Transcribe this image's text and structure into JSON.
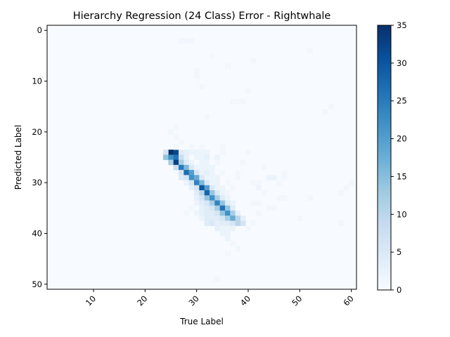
{
  "chart_data": {
    "type": "heatmap",
    "title": "Hierarchy Regression (24 Class) Error - Rightwhale",
    "xlabel": "True Label",
    "ylabel": "Predicted Label",
    "xlim": [
      1,
      61
    ],
    "ylim": [
      51,
      -1
    ],
    "xticks": [
      10,
      20,
      30,
      40,
      50,
      60
    ],
    "yticks": [
      0,
      10,
      20,
      30,
      40,
      50
    ],
    "colormap": "Blues",
    "colorbar": {
      "min": 0,
      "max": 35,
      "ticks": [
        0,
        5,
        10,
        15,
        20,
        25,
        30,
        35
      ]
    },
    "cells": [
      [
        25,
        24,
        35
      ],
      [
        26,
        24,
        32
      ],
      [
        24,
        24,
        6
      ],
      [
        27,
        24,
        4
      ],
      [
        28,
        24,
        3
      ],
      [
        29,
        24,
        2
      ],
      [
        30,
        24,
        2
      ],
      [
        31,
        24,
        2
      ],
      [
        32,
        24,
        2
      ],
      [
        24,
        25,
        14
      ],
      [
        25,
        25,
        22
      ],
      [
        26,
        25,
        26
      ],
      [
        27,
        25,
        8
      ],
      [
        28,
        25,
        3
      ],
      [
        30,
        25,
        2
      ],
      [
        31,
        25,
        2
      ],
      [
        32,
        25,
        3
      ],
      [
        34,
        25,
        2
      ],
      [
        25,
        26,
        12
      ],
      [
        26,
        26,
        33
      ],
      [
        27,
        26,
        12
      ],
      [
        28,
        26,
        4
      ],
      [
        29,
        26,
        2
      ],
      [
        31,
        26,
        2
      ],
      [
        32,
        26,
        2
      ],
      [
        26,
        27,
        8
      ],
      [
        27,
        27,
        25
      ],
      [
        28,
        27,
        16
      ],
      [
        29,
        27,
        5
      ],
      [
        30,
        27,
        2
      ],
      [
        31,
        27,
        2
      ],
      [
        32,
        27,
        2
      ],
      [
        33,
        27,
        2
      ],
      [
        27,
        28,
        6
      ],
      [
        28,
        28,
        27
      ],
      [
        29,
        28,
        20
      ],
      [
        30,
        28,
        6
      ],
      [
        31,
        28,
        2
      ],
      [
        32,
        28,
        3
      ],
      [
        33,
        28,
        2
      ],
      [
        27,
        29,
        4
      ],
      [
        28,
        29,
        6
      ],
      [
        29,
        29,
        22
      ],
      [
        30,
        29,
        18
      ],
      [
        31,
        29,
        5
      ],
      [
        32,
        29,
        2
      ],
      [
        33,
        29,
        2
      ],
      [
        34,
        29,
        2
      ],
      [
        28,
        30,
        2
      ],
      [
        29,
        30,
        6
      ],
      [
        30,
        30,
        24
      ],
      [
        31,
        30,
        16
      ],
      [
        32,
        30,
        5
      ],
      [
        33,
        30,
        2
      ],
      [
        34,
        30,
        2
      ],
      [
        29,
        31,
        3
      ],
      [
        30,
        31,
        6
      ],
      [
        31,
        31,
        30
      ],
      [
        32,
        31,
        20
      ],
      [
        33,
        31,
        5
      ],
      [
        34,
        31,
        2
      ],
      [
        35,
        31,
        2
      ],
      [
        30,
        32,
        4
      ],
      [
        31,
        32,
        10
      ],
      [
        32,
        32,
        28
      ],
      [
        33,
        32,
        14
      ],
      [
        34,
        32,
        5
      ],
      [
        35,
        32,
        2
      ],
      [
        30,
        33,
        3
      ],
      [
        31,
        33,
        6
      ],
      [
        32,
        33,
        14
      ],
      [
        33,
        33,
        22
      ],
      [
        34,
        33,
        12
      ],
      [
        35,
        33,
        4
      ],
      [
        36,
        33,
        2
      ],
      [
        30,
        34,
        2
      ],
      [
        31,
        34,
        4
      ],
      [
        32,
        34,
        6
      ],
      [
        33,
        34,
        12
      ],
      [
        34,
        34,
        24
      ],
      [
        35,
        34,
        14
      ],
      [
        36,
        34,
        4
      ],
      [
        37,
        34,
        2
      ],
      [
        31,
        35,
        3
      ],
      [
        32,
        35,
        4
      ],
      [
        33,
        35,
        6
      ],
      [
        34,
        35,
        12
      ],
      [
        35,
        35,
        26
      ],
      [
        36,
        35,
        14
      ],
      [
        37,
        35,
        4
      ],
      [
        31,
        36,
        3
      ],
      [
        32,
        36,
        4
      ],
      [
        33,
        36,
        4
      ],
      [
        34,
        36,
        6
      ],
      [
        35,
        36,
        14
      ],
      [
        36,
        36,
        22
      ],
      [
        37,
        36,
        12
      ],
      [
        38,
        36,
        3
      ],
      [
        31,
        37,
        2
      ],
      [
        32,
        37,
        4
      ],
      [
        33,
        37,
        4
      ],
      [
        34,
        37,
        4
      ],
      [
        35,
        37,
        6
      ],
      [
        36,
        37,
        12
      ],
      [
        37,
        37,
        18
      ],
      [
        38,
        37,
        10
      ],
      [
        39,
        37,
        3
      ],
      [
        32,
        38,
        4
      ],
      [
        33,
        38,
        5
      ],
      [
        34,
        38,
        3
      ],
      [
        35,
        38,
        4
      ],
      [
        36,
        38,
        4
      ],
      [
        37,
        38,
        6
      ],
      [
        38,
        38,
        10
      ],
      [
        39,
        38,
        6
      ],
      [
        34,
        39,
        3
      ],
      [
        35,
        39,
        2
      ],
      [
        36,
        39,
        2
      ],
      [
        37,
        39,
        2
      ],
      [
        35,
        40,
        2
      ],
      [
        36,
        40,
        2
      ],
      [
        36,
        41,
        2
      ],
      [
        26,
        19,
        1
      ],
      [
        25,
        20,
        1
      ],
      [
        26,
        21,
        1
      ],
      [
        27,
        22,
        1
      ],
      [
        26,
        23,
        1
      ],
      [
        29,
        23,
        1
      ],
      [
        31,
        23,
        1
      ],
      [
        35,
        23,
        1
      ],
      [
        42,
        31,
        2
      ],
      [
        43,
        32,
        1
      ],
      [
        44,
        29,
        2
      ],
      [
        45,
        29,
        2
      ],
      [
        46,
        33,
        1
      ],
      [
        47,
        33,
        1
      ],
      [
        52,
        33,
        1
      ],
      [
        50,
        37,
        1
      ],
      [
        55,
        16,
        1
      ],
      [
        56,
        15,
        1
      ],
      [
        52,
        4,
        1
      ],
      [
        41,
        6,
        1
      ],
      [
        36,
        7,
        1
      ],
      [
        33,
        5,
        1
      ],
      [
        37,
        14,
        1
      ],
      [
        38,
        14,
        1
      ],
      [
        30,
        8,
        1
      ],
      [
        30,
        9,
        1
      ],
      [
        31,
        11,
        1
      ],
      [
        32,
        17,
        1
      ],
      [
        27,
        2,
        1
      ],
      [
        28,
        2,
        1
      ],
      [
        29,
        2,
        1
      ],
      [
        40,
        12,
        1
      ],
      [
        39,
        14,
        1
      ],
      [
        43,
        27,
        1
      ],
      [
        45,
        35,
        1
      ],
      [
        58,
        38,
        1
      ],
      [
        58,
        32,
        1
      ],
      [
        60,
        30,
        1
      ],
      [
        59,
        31,
        1
      ],
      [
        30,
        36,
        2
      ],
      [
        29,
        35,
        1
      ],
      [
        28,
        36,
        1
      ],
      [
        37,
        42,
        1
      ],
      [
        38,
        43,
        1
      ],
      [
        36,
        44,
        1
      ],
      [
        40,
        39,
        1
      ],
      [
        41,
        38,
        1
      ],
      [
        42,
        36,
        1
      ],
      [
        44,
        35,
        1
      ],
      [
        46,
        30,
        1
      ],
      [
        47,
        28,
        1
      ],
      [
        42,
        30,
        1
      ],
      [
        41,
        30,
        1
      ],
      [
        41,
        34,
        1
      ],
      [
        42,
        34,
        1
      ],
      [
        47,
        29,
        1
      ],
      [
        39,
        26,
        1
      ],
      [
        40,
        24,
        1
      ],
      [
        38,
        28,
        1
      ],
      [
        38,
        29,
        1
      ],
      [
        35,
        24,
        1
      ],
      [
        34,
        26,
        1
      ],
      [
        35,
        28,
        1
      ],
      [
        36,
        30,
        1
      ],
      [
        37,
        31,
        1
      ],
      [
        36,
        32,
        1
      ],
      [
        34,
        49,
        1
      ]
    ]
  }
}
